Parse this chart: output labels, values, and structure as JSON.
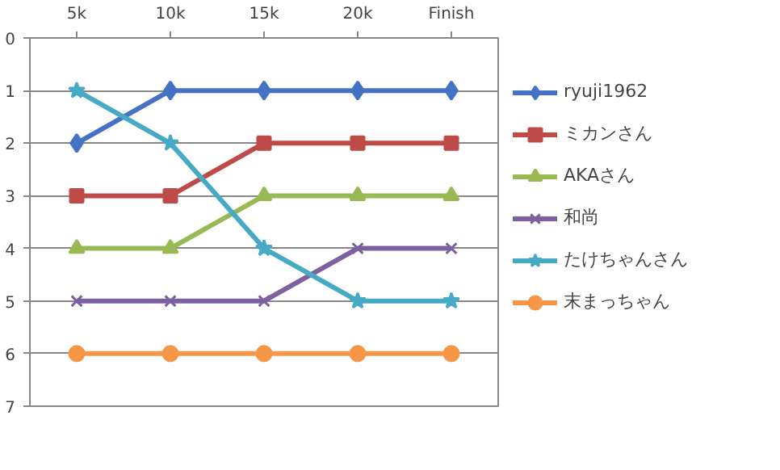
{
  "chart_data": {
    "type": "line",
    "categories": [
      "5k",
      "10k",
      "15k",
      "20k",
      "Finish"
    ],
    "ylim": [
      7,
      0
    ],
    "yticks": [
      0,
      1,
      2,
      3,
      4,
      5,
      6,
      7
    ],
    "grid": "y",
    "legend": "right",
    "series": [
      {
        "name": "ryuji1962",
        "color": "#4472c4",
        "marker": "diamond",
        "values": [
          2,
          1,
          1,
          1,
          1
        ]
      },
      {
        "name": "ミカンさん",
        "color": "#be4b48",
        "marker": "square",
        "values": [
          3,
          3,
          2,
          2,
          2
        ]
      },
      {
        "name": "AKAさん",
        "color": "#98b954",
        "marker": "triangle",
        "values": [
          4,
          4,
          3,
          3,
          3
        ]
      },
      {
        "name": "和尚",
        "color": "#7d60a0",
        "marker": "cross",
        "values": [
          5,
          5,
          5,
          4,
          4
        ]
      },
      {
        "name": "たけちゃんさん",
        "color": "#46aac5",
        "marker": "star",
        "values": [
          1,
          2,
          4,
          5,
          5
        ]
      },
      {
        "name": "末まっちゃん",
        "color": "#f79646",
        "marker": "circle",
        "values": [
          6,
          6,
          6,
          6,
          6
        ]
      }
    ]
  }
}
